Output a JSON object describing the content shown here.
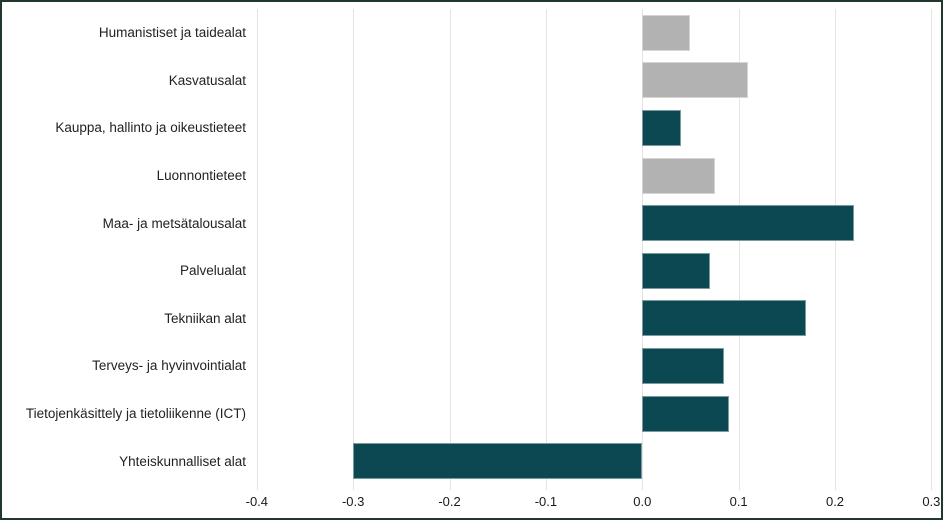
{
  "frame": {
    "background": "#ffffff",
    "border_color": "#20392a"
  },
  "chart_data": {
    "type": "bar",
    "orientation": "horizontal",
    "title": "",
    "xlabel": "",
    "ylabel": "",
    "grid": "vertical",
    "gridline_color": "#e3e3e3",
    "text_color": "#222222",
    "xlim": [
      -0.405,
      0.31
    ],
    "x_tick_values": [
      -0.4,
      -0.3,
      -0.2,
      -0.1,
      0.0,
      0.1,
      0.2,
      0.3
    ],
    "x_tick_labels": [
      "-0.4",
      "-0.3",
      "-0.2",
      "-0.1",
      "0.0",
      "0.1",
      "0.2",
      "0.3"
    ],
    "categories": [
      "Humanistiset ja taidealat",
      "Kasvatusalat",
      "Kauppa, hallinto ja oikeustieteet",
      "Luonnontieteet",
      "Maa- ja metsätalousalat",
      "Palvelualat",
      "Tekniikan alat",
      "Terveys- ja hyvinvointialat",
      "Tietojenkäsittely ja tietoliikenne (ICT)",
      "Yhteiskunnalliset alat"
    ],
    "values": [
      0.05,
      0.11,
      0.04,
      0.075,
      0.22,
      0.07,
      0.17,
      0.085,
      0.09,
      -0.3
    ],
    "bar_colors": [
      "#b2b2b2",
      "#b2b2b2",
      "#0b4851",
      "#b2b2b2",
      "#0b4851",
      "#0b4851",
      "#0b4851",
      "#0b4851",
      "#0b4851",
      "#0b4851"
    ],
    "colors": {
      "highlight": "#0b4851",
      "muted": "#b2b2b2"
    }
  }
}
